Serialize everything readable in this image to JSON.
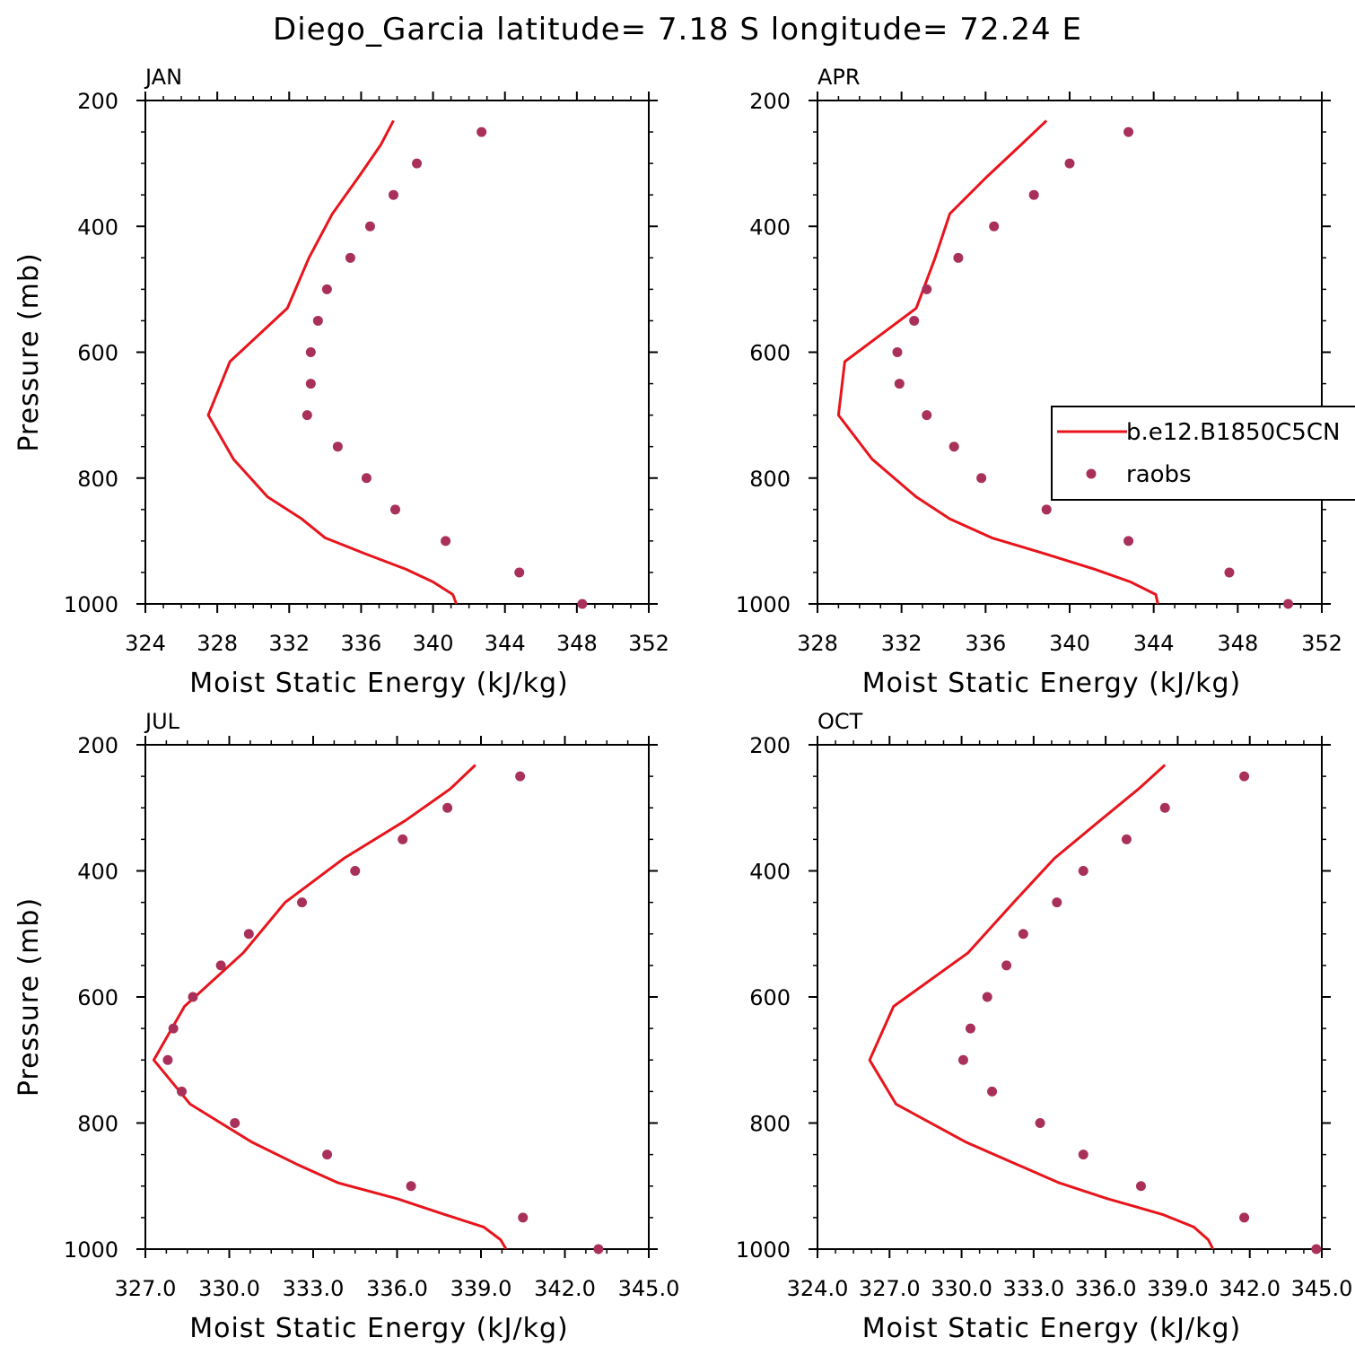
{
  "title": "Diego_Garcia  latitude= 7.18 S longitude= 72.24 E",
  "colors": {
    "model": "#e8141c",
    "obs": "#a8305a",
    "axis": "#000000"
  },
  "chart_data": [
    {
      "type": "line",
      "panel": "JAN",
      "xlabel": "Moist Static Energy (kJ/kg)",
      "ylabel": "Pressure (mb)",
      "xlim": [
        324,
        352
      ],
      "ylim": [
        200,
        1000
      ],
      "xticks": [
        324,
        328,
        332,
        336,
        340,
        344,
        348,
        352
      ],
      "xtick_labels": [
        "324",
        "328",
        "332",
        "336",
        "340",
        "344",
        "348",
        "352"
      ],
      "yticks": [
        200,
        400,
        600,
        800,
        1000
      ],
      "ytick_labels": [
        "200",
        "400",
        "600",
        "800",
        "1000"
      ],
      "series": [
        {
          "name": "b.e12.B1850C5CN",
          "style": "line",
          "x": [
            341.3,
            341.1,
            340.0,
            338.5,
            336.2,
            334.0,
            332.7,
            330.8,
            328.9,
            327.5,
            328.7,
            331.9,
            333.1,
            334.4,
            335.9,
            337.1,
            337.8
          ],
          "y": [
            1000,
            985,
            965,
            945,
            920,
            895,
            865,
            830,
            770,
            700,
            615,
            530,
            450,
            380,
            320,
            270,
            232
          ]
        },
        {
          "name": "raobs",
          "style": "marker",
          "x": [
            348.3,
            344.8,
            340.7,
            337.9,
            336.3,
            334.7,
            333.0,
            333.2,
            333.2,
            333.6,
            334.1,
            335.4,
            336.5,
            337.8,
            339.1,
            342.7
          ],
          "y": [
            1000,
            950,
            900,
            850,
            800,
            750,
            700,
            650,
            600,
            550,
            500,
            450,
            400,
            350,
            300,
            250
          ]
        }
      ]
    },
    {
      "type": "line",
      "panel": "APR",
      "xlabel": "Moist Static Energy (kJ/kg)",
      "ylabel": "",
      "xlim": [
        328,
        352
      ],
      "ylim": [
        200,
        1000
      ],
      "xticks": [
        328,
        332,
        336,
        340,
        344,
        348,
        352
      ],
      "xtick_labels": [
        "328",
        "332",
        "336",
        "340",
        "344",
        "348",
        "352"
      ],
      "yticks": [
        200,
        400,
        600,
        800,
        1000
      ],
      "ytick_labels": [
        "200",
        "400",
        "600",
        "800",
        "1000"
      ],
      "legend": {
        "placement": "right",
        "entries": [
          "b.e12.B1850C5CN",
          "raobs"
        ]
      },
      "series": [
        {
          "name": "b.e12.B1850C5CN",
          "style": "line",
          "x": [
            344.2,
            344.1,
            342.9,
            341.2,
            338.8,
            336.3,
            334.3,
            332.7,
            330.6,
            329.0,
            329.3,
            332.7,
            333.6,
            334.3,
            336.1,
            337.7,
            338.9
          ],
          "y": [
            1000,
            985,
            965,
            945,
            920,
            895,
            865,
            830,
            770,
            700,
            615,
            530,
            450,
            380,
            320,
            270,
            232
          ]
        },
        {
          "name": "raobs",
          "style": "marker",
          "x": [
            350.4,
            347.6,
            342.8,
            338.9,
            335.8,
            334.5,
            333.2,
            331.9,
            331.8,
            332.6,
            333.2,
            334.7,
            336.4,
            338.3,
            340.0,
            342.8
          ],
          "y": [
            1000,
            950,
            900,
            850,
            800,
            750,
            700,
            650,
            600,
            550,
            500,
            450,
            400,
            350,
            300,
            250
          ]
        }
      ]
    },
    {
      "type": "line",
      "panel": "JUL",
      "xlabel": "Moist Static Energy (kJ/kg)",
      "ylabel": "Pressure (mb)",
      "xlim": [
        327,
        345
      ],
      "ylim": [
        200,
        1000
      ],
      "xticks": [
        327,
        330,
        333,
        336,
        339,
        342,
        345
      ],
      "xtick_labels": [
        "327.0",
        "330.0",
        "333.0",
        "336.0",
        "339.0",
        "342.0",
        "345.0"
      ],
      "yticks": [
        200,
        400,
        600,
        800,
        1000
      ],
      "ytick_labels": [
        "200",
        "400",
        "600",
        "800",
        "1000"
      ],
      "series": [
        {
          "name": "b.e12.B1850C5CN",
          "style": "line",
          "x": [
            339.9,
            339.7,
            339.1,
            337.7,
            336.0,
            333.9,
            332.4,
            330.8,
            328.6,
            327.3,
            328.4,
            330.5,
            332.0,
            334.1,
            336.3,
            337.9,
            338.8
          ],
          "y": [
            1000,
            985,
            965,
            945,
            920,
            895,
            865,
            830,
            770,
            700,
            615,
            530,
            450,
            380,
            320,
            270,
            232
          ]
        },
        {
          "name": "raobs",
          "style": "marker",
          "x": [
            343.2,
            340.5,
            336.5,
            333.5,
            330.2,
            328.3,
            327.8,
            328.0,
            328.7,
            329.7,
            330.7,
            332.6,
            334.5,
            336.2,
            337.8,
            340.4
          ],
          "y": [
            1000,
            950,
            900,
            850,
            800,
            750,
            700,
            650,
            600,
            550,
            500,
            450,
            400,
            350,
            300,
            250
          ]
        }
      ]
    },
    {
      "type": "line",
      "panel": "OCT",
      "xlabel": "Moist Static Energy (kJ/kg)",
      "ylabel": "",
      "xlim": [
        324.03,
        345.03
      ],
      "ylim": [
        200,
        1000
      ],
      "xticks": [
        324.03,
        327.03,
        330.03,
        333.03,
        336.03,
        339.03,
        342.03,
        345.03
      ],
      "xtick_labels": [
        "324.0",
        "327.0",
        "330.0",
        "333.0",
        "336.0",
        "339.0",
        "342.0",
        "345.0"
      ],
      "yticks": [
        200,
        400,
        600,
        800,
        1000
      ],
      "ytick_labels": [
        "200",
        "400",
        "600",
        "800",
        "1000"
      ],
      "series": [
        {
          "name": "b.e12.B1850C5CN",
          "style": "line",
          "x": [
            340.5,
            340.3,
            339.7,
            338.4,
            336.1,
            334.1,
            332.3,
            330.2,
            327.3,
            326.2,
            327.2,
            330.3,
            332.2,
            333.9,
            335.8,
            337.4,
            338.5
          ],
          "y": [
            1000,
            985,
            965,
            945,
            920,
            895,
            865,
            830,
            770,
            700,
            615,
            530,
            450,
            380,
            320,
            270,
            232
          ]
        },
        {
          "name": "raobs",
          "style": "marker",
          "x": [
            344.8,
            341.8,
            337.5,
            335.1,
            333.3,
            331.3,
            330.1,
            330.4,
            331.1,
            331.9,
            332.6,
            334.0,
            335.1,
            336.9,
            338.5,
            341.8
          ],
          "y": [
            1000,
            950,
            900,
            850,
            800,
            750,
            700,
            650,
            600,
            550,
            500,
            450,
            400,
            350,
            300,
            250
          ]
        }
      ]
    }
  ]
}
